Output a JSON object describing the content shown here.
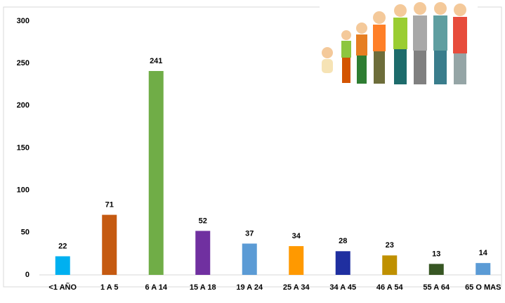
{
  "chart_data": {
    "type": "bar",
    "categories": [
      "<1 AÑO",
      "1 A 5",
      "6 A 14",
      "15 A 18",
      "19 A 24",
      "25 A 34",
      "34 A 45",
      "46 A 54",
      "55 A 64",
      "65 O MAS"
    ],
    "values": [
      22,
      71,
      241,
      52,
      37,
      34,
      28,
      23,
      13,
      14
    ],
    "colors": [
      "#00b0f0",
      "#c55a11",
      "#70ad47",
      "#7030a0",
      "#5b9bd5",
      "#ff9900",
      "#1f2fa0",
      "#bf9000",
      "#375623",
      "#5b9bd5"
    ],
    "ylim": [
      0,
      300
    ],
    "yticks": [
      0,
      50,
      100,
      150,
      200,
      250,
      300
    ],
    "grid": false
  }
}
